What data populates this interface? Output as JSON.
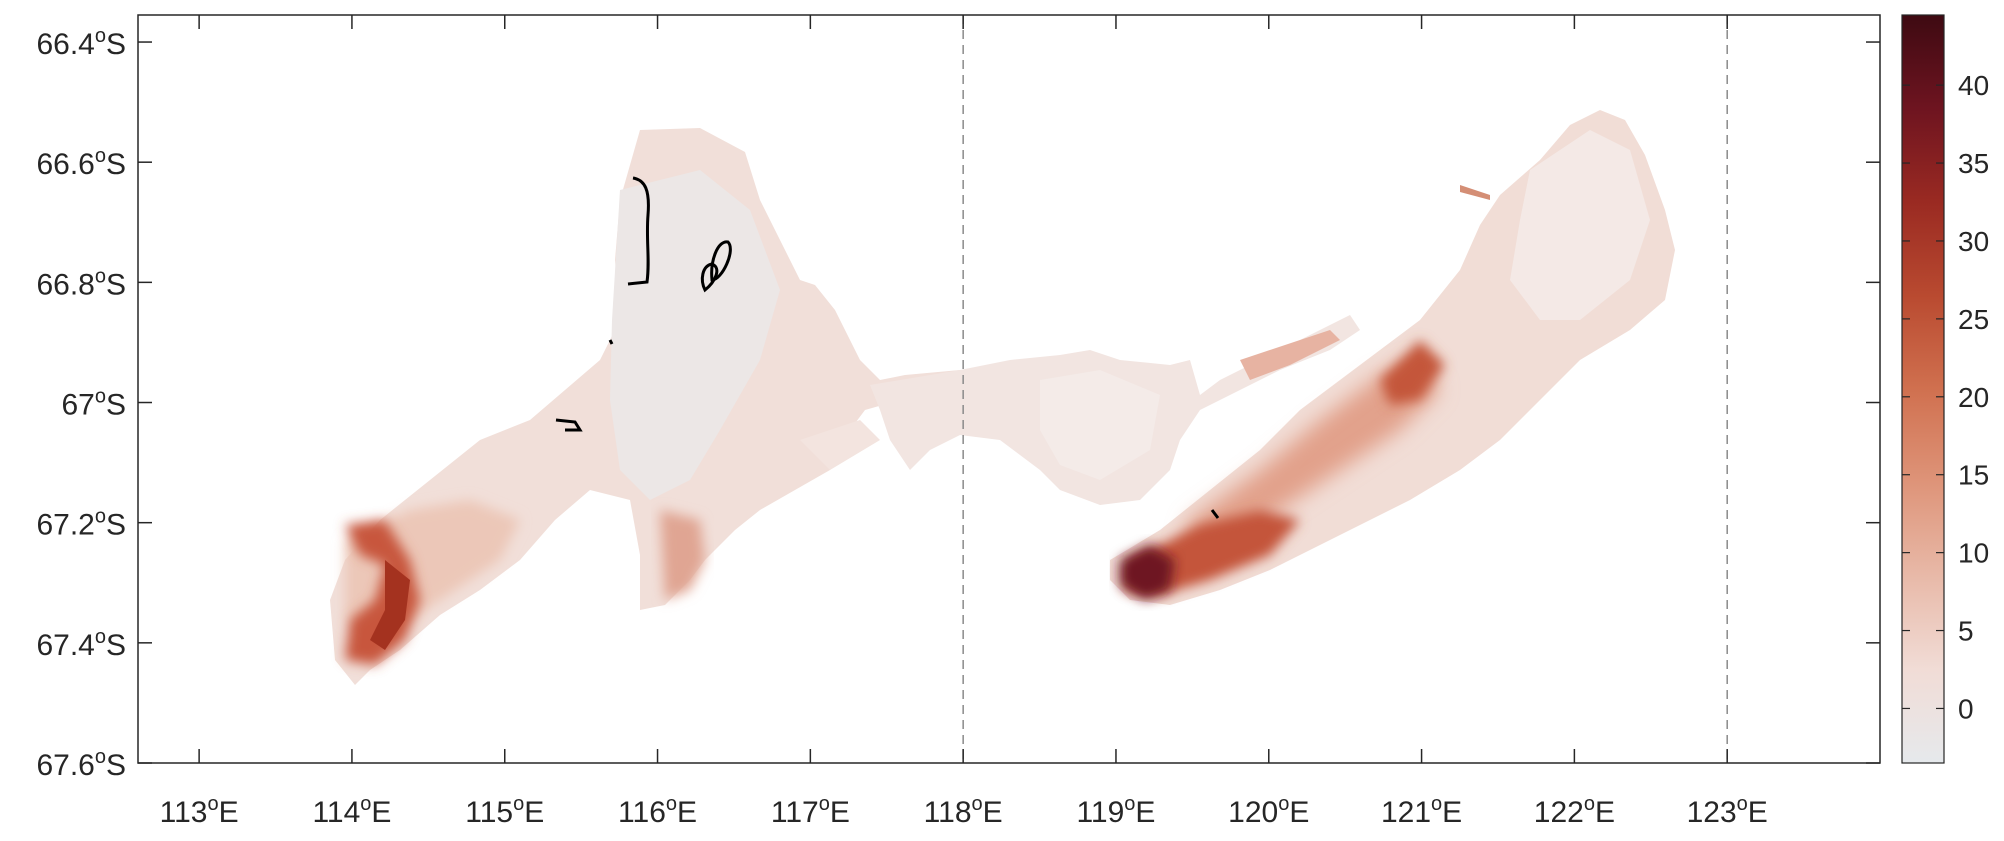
{
  "map": {
    "x_axis": {
      "ticks": [
        {
          "value": 113,
          "label": "113",
          "unit": "°E"
        },
        {
          "value": 114,
          "label": "114",
          "unit": "°E"
        },
        {
          "value": 115,
          "label": "115",
          "unit": "°E"
        },
        {
          "value": 116,
          "label": "116",
          "unit": "°E"
        },
        {
          "value": 117,
          "label": "117",
          "unit": "°E"
        },
        {
          "value": 118,
          "label": "118",
          "unit": "°E"
        },
        {
          "value": 119,
          "label": "119",
          "unit": "°E"
        },
        {
          "value": 120,
          "label": "120",
          "unit": "°E"
        },
        {
          "value": 121,
          "label": "121",
          "unit": "°E"
        },
        {
          "value": 122,
          "label": "122",
          "unit": "°E"
        },
        {
          "value": 123,
          "label": "123",
          "unit": "°E"
        }
      ],
      "range": [
        112.6,
        124.0
      ]
    },
    "y_axis": {
      "ticks": [
        {
          "value": 66.4,
          "label": "66.4",
          "unit": "°S"
        },
        {
          "value": 66.6,
          "label": "66.6",
          "unit": "°S"
        },
        {
          "value": 66.8,
          "label": "66.8",
          "unit": "°S"
        },
        {
          "value": 67.0,
          "label": "67",
          "unit": "°S"
        },
        {
          "value": 67.2,
          "label": "67.2",
          "unit": "°S"
        },
        {
          "value": 67.4,
          "label": "67.4",
          "unit": "°S"
        },
        {
          "value": 67.6,
          "label": "67.6",
          "unit": "°S"
        }
      ],
      "range": [
        66.355,
        67.6
      ]
    },
    "dashed_meridians": [
      118,
      123
    ],
    "colorbar": {
      "ticks": [
        "40",
        "35",
        "30",
        "25",
        "20",
        "15",
        "10",
        "5",
        "0"
      ],
      "tick_values": [
        40,
        35,
        30,
        25,
        20,
        15,
        10,
        5,
        0
      ],
      "range": [
        -3.5,
        44.5
      ],
      "colormap": [
        "#e6e9ec",
        "#f1dcd6",
        "#e8b9a8",
        "#de9479",
        "#d0704f",
        "#b94a30",
        "#9a2a22",
        "#6e1420",
        "#3e0a12"
      ]
    }
  }
}
